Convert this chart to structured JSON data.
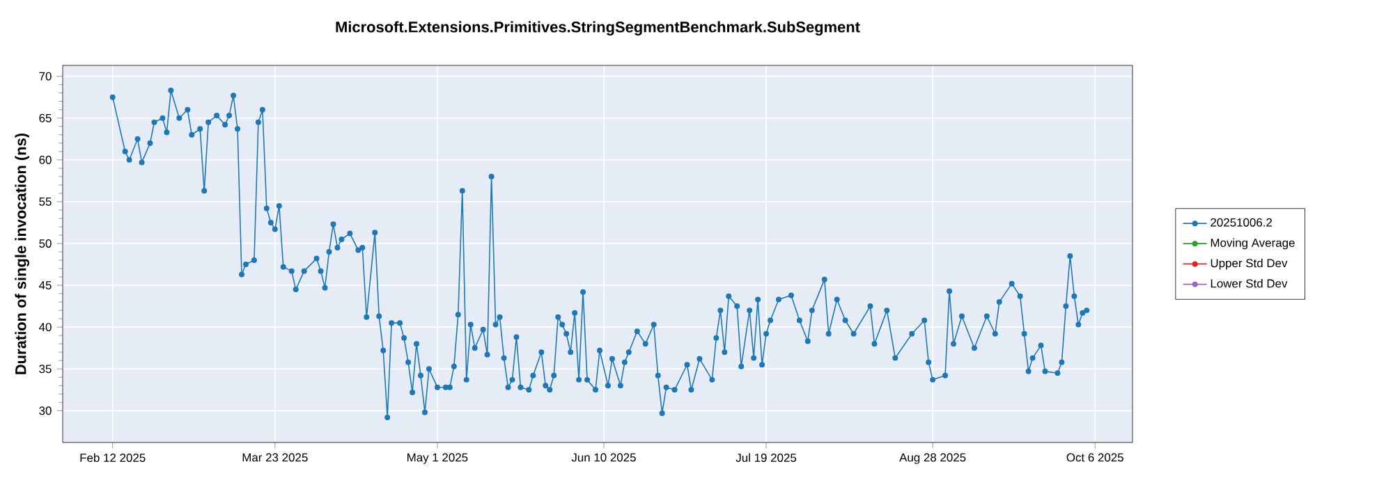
{
  "chart_data": {
    "type": "line",
    "title": "Microsoft.Extensions.Primitives.StringSegmentBenchmark.SubSegment",
    "ylabel": "Duration of single invocation (ns)",
    "xlim": [
      "2025-01-31",
      "2025-10-15"
    ],
    "ylim": [
      26.2,
      71.3
    ],
    "xticks": [
      {
        "value": "2025-02-12",
        "label": "Feb 12 2025"
      },
      {
        "value": "2025-03-23",
        "label": "Mar 23 2025"
      },
      {
        "value": "2025-05-01",
        "label": "May 1 2025"
      },
      {
        "value": "2025-06-10",
        "label": "Jun 10 2025"
      },
      {
        "value": "2025-07-19",
        "label": "Jul 19 2025"
      },
      {
        "value": "2025-08-28",
        "label": "Aug 28 2025"
      },
      {
        "value": "2025-10-06",
        "label": "Oct 6 2025"
      }
    ],
    "yticks": [
      30,
      35,
      40,
      45,
      50,
      55,
      60,
      65,
      70
    ],
    "grid": true,
    "legend": "right",
    "marker": "circle",
    "line_style": "solid",
    "series": [
      {
        "name": "20251006.2",
        "color": "#1f77b4",
        "x": [
          "2025-02-12",
          "2025-02-15",
          "2025-02-16",
          "2025-02-18",
          "2025-02-19",
          "2025-02-21",
          "2025-02-22",
          "2025-02-24",
          "2025-02-25",
          "2025-02-26",
          "2025-02-28",
          "2025-03-02",
          "2025-03-03",
          "2025-03-05",
          "2025-03-06",
          "2025-03-07",
          "2025-03-09",
          "2025-03-11",
          "2025-03-12",
          "2025-03-13",
          "2025-03-14",
          "2025-03-15",
          "2025-03-16",
          "2025-03-18",
          "2025-03-19",
          "2025-03-20",
          "2025-03-21",
          "2025-03-22",
          "2025-03-23",
          "2025-03-24",
          "2025-03-25",
          "2025-03-27",
          "2025-03-28",
          "2025-03-30",
          "2025-04-02",
          "2025-04-03",
          "2025-04-04",
          "2025-04-05",
          "2025-04-06",
          "2025-04-07",
          "2025-04-08",
          "2025-04-10",
          "2025-04-12",
          "2025-04-13",
          "2025-04-14",
          "2025-04-16",
          "2025-04-17",
          "2025-04-18",
          "2025-04-19",
          "2025-04-20",
          "2025-04-22",
          "2025-04-23",
          "2025-04-24",
          "2025-04-25",
          "2025-04-26",
          "2025-04-27",
          "2025-04-28",
          "2025-04-29",
          "2025-05-01",
          "2025-05-03",
          "2025-05-04",
          "2025-05-05",
          "2025-05-06",
          "2025-05-07",
          "2025-05-08",
          "2025-05-09",
          "2025-05-10",
          "2025-05-12",
          "2025-05-13",
          "2025-05-14",
          "2025-05-15",
          "2025-05-16",
          "2025-05-17",
          "2025-05-18",
          "2025-05-19",
          "2025-05-20",
          "2025-05-21",
          "2025-05-23",
          "2025-05-24",
          "2025-05-26",
          "2025-05-27",
          "2025-05-28",
          "2025-05-29",
          "2025-05-30",
          "2025-05-31",
          "2025-06-01",
          "2025-06-02",
          "2025-06-03",
          "2025-06-04",
          "2025-06-05",
          "2025-06-06",
          "2025-06-08",
          "2025-06-09",
          "2025-06-11",
          "2025-06-12",
          "2025-06-14",
          "2025-06-15",
          "2025-06-16",
          "2025-06-18",
          "2025-06-20",
          "2025-06-22",
          "2025-06-23",
          "2025-06-24",
          "2025-06-25",
          "2025-06-27",
          "2025-06-30",
          "2025-07-01",
          "2025-07-03",
          "2025-07-06",
          "2025-07-07",
          "2025-07-08",
          "2025-07-09",
          "2025-07-10",
          "2025-07-12",
          "2025-07-13",
          "2025-07-15",
          "2025-07-16",
          "2025-07-17",
          "2025-07-18",
          "2025-07-19",
          "2025-07-20",
          "2025-07-22",
          "2025-07-25",
          "2025-07-27",
          "2025-07-29",
          "2025-07-30",
          "2025-08-02",
          "2025-08-03",
          "2025-08-05",
          "2025-08-07",
          "2025-08-09",
          "2025-08-13",
          "2025-08-14",
          "2025-08-17",
          "2025-08-19",
          "2025-08-23",
          "2025-08-26",
          "2025-08-27",
          "2025-08-28",
          "2025-08-31",
          "2025-09-01",
          "2025-09-02",
          "2025-09-04",
          "2025-09-07",
          "2025-09-10",
          "2025-09-12",
          "2025-09-13",
          "2025-09-16",
          "2025-09-18",
          "2025-09-19",
          "2025-09-20",
          "2025-09-21",
          "2025-09-23",
          "2025-09-24",
          "2025-09-27",
          "2025-09-28",
          "2025-09-29",
          "2025-09-30",
          "2025-10-01",
          "2025-10-02",
          "2025-10-03",
          "2025-10-04"
        ],
        "values": [
          67.5,
          61,
          60,
          62.5,
          59.7,
          62,
          64.5,
          65,
          63.3,
          68.3,
          65,
          66,
          63,
          63.7,
          56.3,
          64.5,
          65.3,
          64.2,
          65.3,
          67.7,
          63.7,
          46.3,
          47.5,
          48,
          64.5,
          66,
          54.2,
          52.5,
          51.7,
          54.5,
          47.2,
          46.7,
          44.5,
          46.7,
          48.2,
          46.7,
          44.7,
          49,
          52.3,
          49.5,
          50.5,
          51.2,
          49.2,
          49.5,
          41.2,
          51.3,
          41.3,
          37.2,
          29.2,
          40.5,
          40.5,
          38.7,
          35.8,
          32.2,
          38,
          34.2,
          29.8,
          35,
          32.8,
          32.8,
          32.8,
          35.3,
          41.5,
          56.3,
          33.7,
          40.3,
          37.5,
          39.7,
          36.7,
          58,
          40.3,
          41.2,
          36.3,
          32.8,
          33.7,
          38.8,
          32.8,
          32.5,
          34.2,
          37,
          33,
          32.5,
          34.2,
          41.2,
          40.3,
          39.2,
          37,
          41.7,
          33.7,
          44.2,
          33.7,
          32.5,
          37.2,
          33,
          36.2,
          33,
          35.8,
          37,
          39.5,
          38,
          40.3,
          34.2,
          29.7,
          32.8,
          32.5,
          35.5,
          32.5,
          36.2,
          33.7,
          38.7,
          42,
          37,
          43.7,
          42.5,
          35.3,
          42,
          36.3,
          43.3,
          35.5,
          39.2,
          40.8,
          43.3,
          43.8,
          40.8,
          38.3,
          42,
          45.7,
          39.2,
          43.3,
          40.8,
          39.2,
          42.5,
          38,
          42,
          36.3,
          39.2,
          40.8,
          35.8,
          33.7,
          34.2,
          44.3,
          38,
          41.3,
          37.5,
          41.3,
          39.2,
          43,
          45.2,
          43.7,
          39.2,
          34.7,
          36.3,
          37.8,
          34.7,
          34.5,
          35.8,
          42.5,
          48.5,
          43.7,
          40.3,
          41.7,
          42
        ]
      },
      {
        "name": "Moving Average",
        "color": "#2ca02c"
      },
      {
        "name": "Upper Std Dev",
        "color": "#d62728"
      },
      {
        "name": "Lower Std Dev",
        "color": "#9467bd"
      }
    ]
  }
}
